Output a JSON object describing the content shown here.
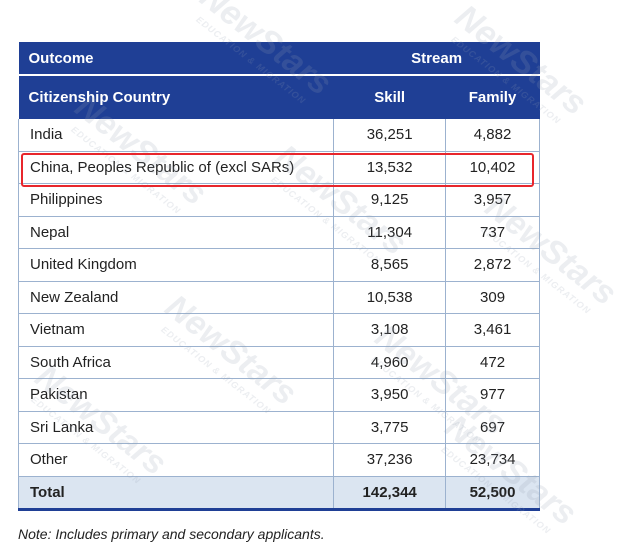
{
  "table": {
    "header": {
      "outcome_label": "Outcome",
      "stream_label": "Stream",
      "citizenship_label": "Citizenship Country",
      "skill_label": "Skill",
      "family_label": "Family"
    },
    "rows": [
      {
        "country": "India",
        "skill": "36,251",
        "family": "4,882"
      },
      {
        "country": "China, Peoples Republic of (excl SARs)",
        "skill": "13,532",
        "family": "10,402"
      },
      {
        "country": "Philippines",
        "skill": "9,125",
        "family": "3,957"
      },
      {
        "country": "Nepal",
        "skill": "11,304",
        "family": "737"
      },
      {
        "country": "United Kingdom",
        "skill": "8,565",
        "family": "2,872"
      },
      {
        "country": "New Zealand",
        "skill": "10,538",
        "family": "309"
      },
      {
        "country": "Vietnam",
        "skill": "3,108",
        "family": "3,461"
      },
      {
        "country": "South Africa",
        "skill": "4,960",
        "family": "472"
      },
      {
        "country": "Pakistan",
        "skill": "3,950",
        "family": "977"
      },
      {
        "country": "Sri Lanka",
        "skill": "3,775",
        "family": "697"
      },
      {
        "country": "Other",
        "skill": "37,236",
        "family": "23,734"
      }
    ],
    "total": {
      "label": "Total",
      "skill": "142,344",
      "family": "52,500"
    },
    "highlighted_row": "China, Peoples Republic of (excl SARs)"
  },
  "note": "Note: Includes primary and secondary applicants.",
  "watermark": {
    "brand": "NewStars",
    "tagline": "EDUCATION & MIGRATION"
  },
  "colors": {
    "header_bg": "#1f3f95",
    "total_bg": "#dbe5f1",
    "highlight_border": "#e8262c",
    "grid_line": "#9cb2cf"
  }
}
